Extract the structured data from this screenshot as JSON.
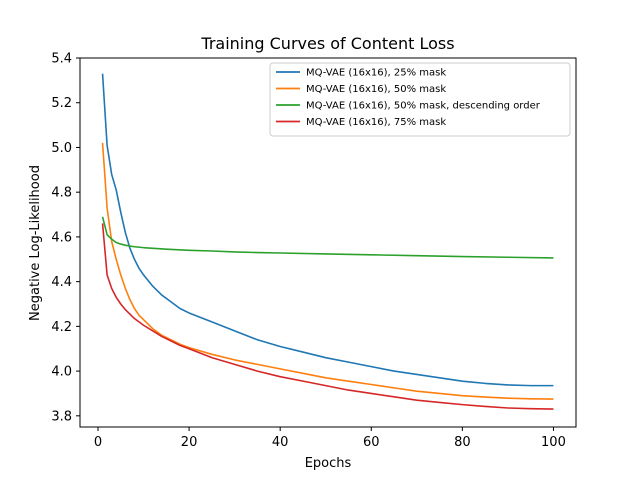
{
  "chart_data": {
    "type": "line",
    "title": "Training Curves of Content Loss",
    "xlabel": "Epochs",
    "ylabel": "Negative Log-Likelihood",
    "xlim": [
      -3.95,
      104.95
    ],
    "ylim": [
      3.75,
      5.4
    ],
    "xticks": [
      0,
      20,
      40,
      60,
      80,
      100
    ],
    "yticks": [
      3.8,
      4.0,
      4.2,
      4.4,
      4.6,
      4.8,
      5.0,
      5.2,
      5.4
    ],
    "xtick_labels": [
      "0",
      "20",
      "40",
      "60",
      "80",
      "100"
    ],
    "ytick_labels": [
      "3.8",
      "4.0",
      "4.2",
      "4.4",
      "4.6",
      "4.8",
      "5.0",
      "5.2",
      "5.4"
    ],
    "legend_position": "top-right",
    "grid": false,
    "series": [
      {
        "name": "MQ-VAE (16x16), 25% mask",
        "color": "#1f77b4",
        "points": [
          [
            1,
            5.33
          ],
          [
            2,
            5.01
          ],
          [
            3,
            4.88
          ],
          [
            4,
            4.81
          ],
          [
            5,
            4.71
          ],
          [
            6,
            4.62
          ],
          [
            7,
            4.55
          ],
          [
            8,
            4.5
          ],
          [
            9,
            4.46
          ],
          [
            10,
            4.43
          ],
          [
            12,
            4.38
          ],
          [
            14,
            4.34
          ],
          [
            16,
            4.31
          ],
          [
            18,
            4.28
          ],
          [
            20,
            4.26
          ],
          [
            25,
            4.22
          ],
          [
            30,
            4.18
          ],
          [
            35,
            4.14
          ],
          [
            40,
            4.11
          ],
          [
            45,
            4.085
          ],
          [
            50,
            4.06
          ],
          [
            55,
            4.04
          ],
          [
            60,
            4.02
          ],
          [
            65,
            4.0
          ],
          [
            70,
            3.985
          ],
          [
            75,
            3.97
          ],
          [
            80,
            3.955
          ],
          [
            85,
            3.945
          ],
          [
            90,
            3.938
          ],
          [
            95,
            3.935
          ],
          [
            100,
            3.935
          ]
        ]
      },
      {
        "name": "MQ-VAE (16x16), 50% mask",
        "color": "#ff7f0e",
        "points": [
          [
            1,
            5.02
          ],
          [
            2,
            4.73
          ],
          [
            3,
            4.58
          ],
          [
            4,
            4.5
          ],
          [
            5,
            4.43
          ],
          [
            6,
            4.37
          ],
          [
            7,
            4.32
          ],
          [
            8,
            4.28
          ],
          [
            9,
            4.25
          ],
          [
            10,
            4.23
          ],
          [
            12,
            4.19
          ],
          [
            14,
            4.16
          ],
          [
            16,
            4.14
          ],
          [
            18,
            4.12
          ],
          [
            20,
            4.105
          ],
          [
            25,
            4.075
          ],
          [
            30,
            4.05
          ],
          [
            35,
            4.03
          ],
          [
            40,
            4.01
          ],
          [
            45,
            3.99
          ],
          [
            50,
            3.97
          ],
          [
            55,
            3.955
          ],
          [
            60,
            3.94
          ],
          [
            65,
            3.925
          ],
          [
            70,
            3.91
          ],
          [
            75,
            3.9
          ],
          [
            80,
            3.89
          ],
          [
            85,
            3.884
          ],
          [
            90,
            3.879
          ],
          [
            95,
            3.876
          ],
          [
            100,
            3.875
          ]
        ]
      },
      {
        "name": "MQ-VAE (16x16), 50% mask, descending order",
        "color": "#2ca02c",
        "points": [
          [
            1,
            4.69
          ],
          [
            2,
            4.61
          ],
          [
            3,
            4.59
          ],
          [
            4,
            4.575
          ],
          [
            5,
            4.568
          ],
          [
            6,
            4.563
          ],
          [
            7,
            4.559
          ],
          [
            8,
            4.556
          ],
          [
            10,
            4.552
          ],
          [
            15,
            4.545
          ],
          [
            20,
            4.54
          ],
          [
            25,
            4.537
          ],
          [
            30,
            4.533
          ],
          [
            35,
            4.53
          ],
          [
            40,
            4.528
          ],
          [
            50,
            4.524
          ],
          [
            60,
            4.52
          ],
          [
            70,
            4.516
          ],
          [
            80,
            4.512
          ],
          [
            90,
            4.509
          ],
          [
            100,
            4.506
          ]
        ]
      },
      {
        "name": "MQ-VAE (16x16), 75% mask",
        "color": "#d62728",
        "points": [
          [
            1,
            4.66
          ],
          [
            2,
            4.43
          ],
          [
            3,
            4.37
          ],
          [
            4,
            4.33
          ],
          [
            5,
            4.3
          ],
          [
            6,
            4.275
          ],
          [
            7,
            4.255
          ],
          [
            8,
            4.235
          ],
          [
            9,
            4.22
          ],
          [
            10,
            4.205
          ],
          [
            12,
            4.18
          ],
          [
            14,
            4.155
          ],
          [
            16,
            4.135
          ],
          [
            18,
            4.115
          ],
          [
            20,
            4.1
          ],
          [
            25,
            4.06
          ],
          [
            30,
            4.03
          ],
          [
            35,
            4.0
          ],
          [
            40,
            3.975
          ],
          [
            45,
            3.955
          ],
          [
            50,
            3.935
          ],
          [
            55,
            3.915
          ],
          [
            60,
            3.9
          ],
          [
            65,
            3.885
          ],
          [
            70,
            3.87
          ],
          [
            75,
            3.86
          ],
          [
            80,
            3.85
          ],
          [
            85,
            3.842
          ],
          [
            90,
            3.835
          ],
          [
            95,
            3.832
          ],
          [
            100,
            3.83
          ]
        ]
      }
    ]
  }
}
